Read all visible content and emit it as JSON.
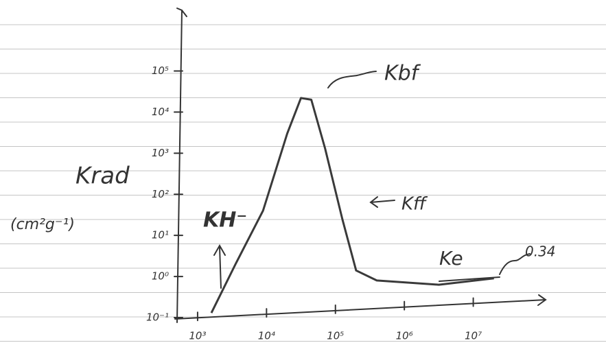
{
  "chart_data": {
    "type": "line",
    "x_scale": "log",
    "y_scale": "log",
    "color": "#3a3a3a",
    "x": [
      1585,
      3548,
      8913,
      19953,
      31623,
      44668,
      70795,
      125893,
      199526,
      398107,
      3162278,
      19952623
    ],
    "values": [
      0.13,
      2,
      40,
      3000,
      22000,
      20000,
      1300,
      25,
      1.4,
      0.8,
      0.63,
      0.9
    ],
    "xlim": [
      470,
      100000000
    ],
    "ylim": [
      0.1,
      3000000
    ],
    "xticks": [
      {
        "value": 1000,
        "label": "10³"
      },
      {
        "value": 10000,
        "label": "10⁴"
      },
      {
        "value": 100000,
        "label": "10⁵"
      },
      {
        "value": 1000000,
        "label": "10⁶"
      },
      {
        "value": 10000000,
        "label": "10⁷"
      }
    ],
    "yticks": [
      {
        "value": 0.1,
        "label": "10⁻¹"
      },
      {
        "value": 1,
        "label": "10⁰"
      },
      {
        "value": 10,
        "label": "10¹"
      },
      {
        "value": 100,
        "label": "10²"
      },
      {
        "value": 1000,
        "label": "10³"
      },
      {
        "value": 10000,
        "label": "10⁴"
      },
      {
        "value": 100000,
        "label": "10⁵"
      }
    ],
    "y_label": "Krad",
    "y_unit": "(cm²g⁻¹)",
    "annotations": [
      "KH⁻",
      "Kbf",
      "Kff",
      "Ke",
      "0.34"
    ]
  }
}
